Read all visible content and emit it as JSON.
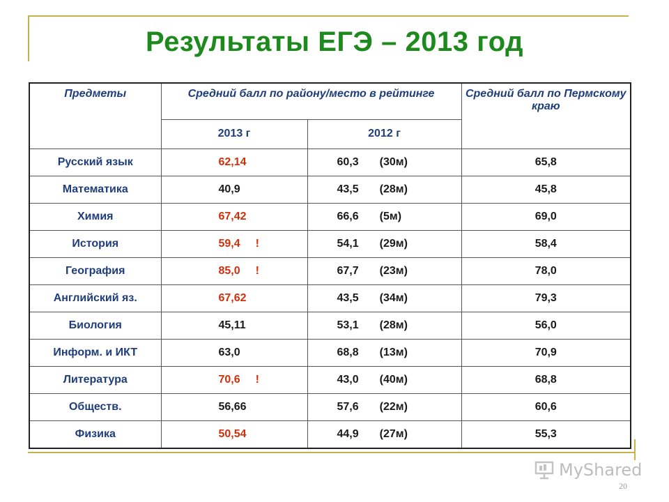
{
  "title": "Результаты ЕГЭ – 2013 год",
  "table": {
    "headers": {
      "subjects": "Предметы",
      "district_group": "Средний балл по району/место в рейтинге",
      "year_2013": "2013 г",
      "year_2012": "2012 г",
      "perm": "Средний балл по Пермскому краю"
    },
    "rows": [
      {
        "subject": "Русский язык",
        "v2013": "62,14",
        "mark": "",
        "highlight": true,
        "v2012": "60,3",
        "place": "(30м)",
        "perm": "65,8"
      },
      {
        "subject": "Математика",
        "v2013": "40,9",
        "mark": "",
        "highlight": false,
        "v2012": "43,5",
        "place": "(28м)",
        "perm": "45,8"
      },
      {
        "subject": "Химия",
        "v2013": "67,42",
        "mark": "",
        "highlight": true,
        "v2012": "66,6",
        "place": "(5м)",
        "perm": "69,0"
      },
      {
        "subject": "История",
        "v2013": "59,4",
        "mark": "!",
        "highlight": true,
        "v2012": "54,1",
        "place": "(29м)",
        "perm": "58,4"
      },
      {
        "subject": "География",
        "v2013": "85,0",
        "mark": "!",
        "highlight": true,
        "v2012": "67,7",
        "place": "(23м)",
        "perm": "78,0"
      },
      {
        "subject": "Английский яз.",
        "v2013": "67,62",
        "mark": "",
        "highlight": true,
        "v2012": "43,5",
        "place": "(34м)",
        "perm": "79,3"
      },
      {
        "subject": "Биология",
        "v2013": "45,11",
        "mark": "",
        "highlight": false,
        "v2012": "53,1",
        "place": "(28м)",
        "perm": "56,0"
      },
      {
        "subject": "Информ. и ИКТ",
        "v2013": "63,0",
        "mark": "",
        "highlight": false,
        "v2012": "68,8",
        "place": "(13м)",
        "perm": "70,9"
      },
      {
        "subject": "Литература",
        "v2013": "70,6",
        "mark": "!",
        "highlight": true,
        "v2012": "43,0",
        "place": "(40м)",
        "perm": "68,8"
      },
      {
        "subject": "Обществ.",
        "v2013": "56,66",
        "mark": "",
        "highlight": false,
        "v2012": "57,6",
        "place": "(22м)",
        "perm": "60,6"
      },
      {
        "subject": "Физика",
        "v2013": "50,54",
        "mark": "",
        "highlight": true,
        "v2012": "44,9",
        "place": "(27м)",
        "perm": "55,3"
      }
    ]
  },
  "watermark": "MyShared",
  "page_number": "20",
  "colors": {
    "title": "#1e8a1e",
    "header": "#1f3d7a",
    "highlight": "#d12f0a",
    "accent_line": "#c8b24a"
  }
}
